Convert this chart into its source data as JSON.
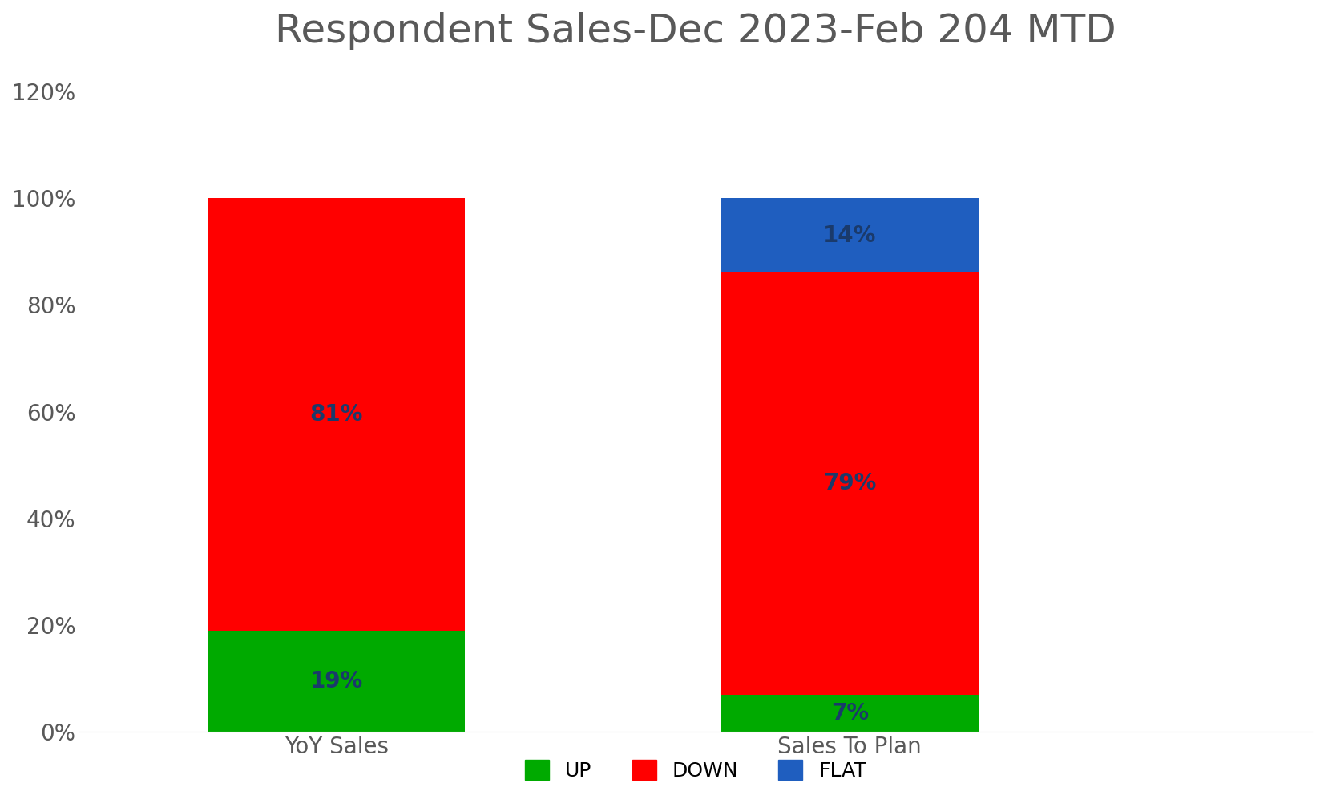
{
  "title": "Respondent Sales-Dec 2023-Feb 204 MTD",
  "categories": [
    "YoY Sales",
    "Sales To Plan"
  ],
  "segments": {
    "UP": [
      19,
      7
    ],
    "DOWN": [
      81,
      79
    ],
    "FLAT": [
      0,
      14
    ]
  },
  "colors": {
    "UP": "#00aa00",
    "DOWN": "#ff0000",
    "FLAT": "#1f5ebf"
  },
  "label_colors": {
    "UP": "#1a3a6b",
    "DOWN": "#1a3a6b",
    "FLAT": "#1a3a6b"
  },
  "ylim": [
    0,
    1.25
  ],
  "yticks": [
    0,
    0.2,
    0.4,
    0.6,
    0.8,
    1.0,
    1.2
  ],
  "ytick_labels": [
    "0%",
    "20%",
    "40%",
    "60%",
    "80%",
    "100%",
    "120%"
  ],
  "legend_labels": [
    "UP",
    "DOWN",
    "FLAT"
  ],
  "bar_width": 0.25,
  "bar_positions": [
    0.25,
    0.75
  ],
  "xlim": [
    0,
    1.2
  ],
  "label_fontsize": 20,
  "title_fontsize": 36,
  "tick_fontsize": 20,
  "legend_fontsize": 18,
  "background_color": "#ffffff",
  "text_color": "#595959"
}
